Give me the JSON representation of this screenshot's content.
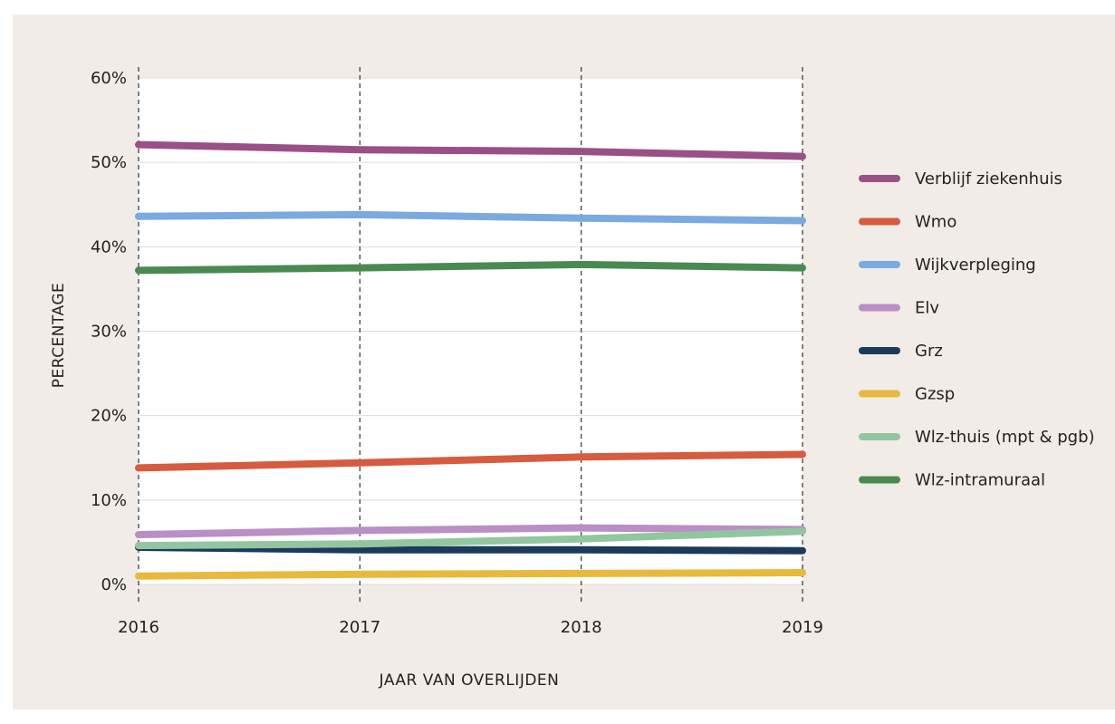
{
  "chart_data": {
    "type": "line",
    "title": "",
    "xlabel": "JAAR VAN OVERLIJDEN",
    "ylabel": "PERCENTAGE",
    "x": [
      "2016",
      "2017",
      "2018",
      "2019"
    ],
    "ylim": [
      0,
      60
    ],
    "yticks": [
      0,
      10,
      20,
      30,
      40,
      50,
      60
    ],
    "ytick_labels": [
      "0%",
      "10%",
      "20%",
      "30%",
      "40%",
      "50%",
      "60%"
    ],
    "grid": "horizontal solid, vertical dashed at each year",
    "legend_position": "right",
    "series": [
      {
        "name": "Verblijf ziekenhuis",
        "color": "#9b4f87",
        "values": [
          52.1,
          51.5,
          51.3,
          50.7
        ]
      },
      {
        "name": "Wmo",
        "color": "#d65b3f",
        "values": [
          13.8,
          14.4,
          15.1,
          15.4
        ]
      },
      {
        "name": "Wijkverpleging",
        "color": "#7aaadf",
        "values": [
          43.6,
          43.8,
          43.4,
          43.1
        ]
      },
      {
        "name": "Elv",
        "color": "#b98fc6",
        "values": [
          5.9,
          6.4,
          6.7,
          6.5
        ]
      },
      {
        "name": "Grz",
        "color": "#1c3a5c",
        "values": [
          4.4,
          4.1,
          4.1,
          4.0
        ]
      },
      {
        "name": "Gzsp",
        "color": "#e8b93d",
        "values": [
          1.0,
          1.2,
          1.3,
          1.4
        ]
      },
      {
        "name": "Wlz-thuis (mpt & pgb)",
        "color": "#92c6a0",
        "values": [
          4.6,
          4.8,
          5.4,
          6.3
        ]
      },
      {
        "name": "Wlz-intramuraal",
        "color": "#4a8a52",
        "values": [
          37.2,
          37.5,
          37.9,
          37.5
        ]
      }
    ]
  }
}
